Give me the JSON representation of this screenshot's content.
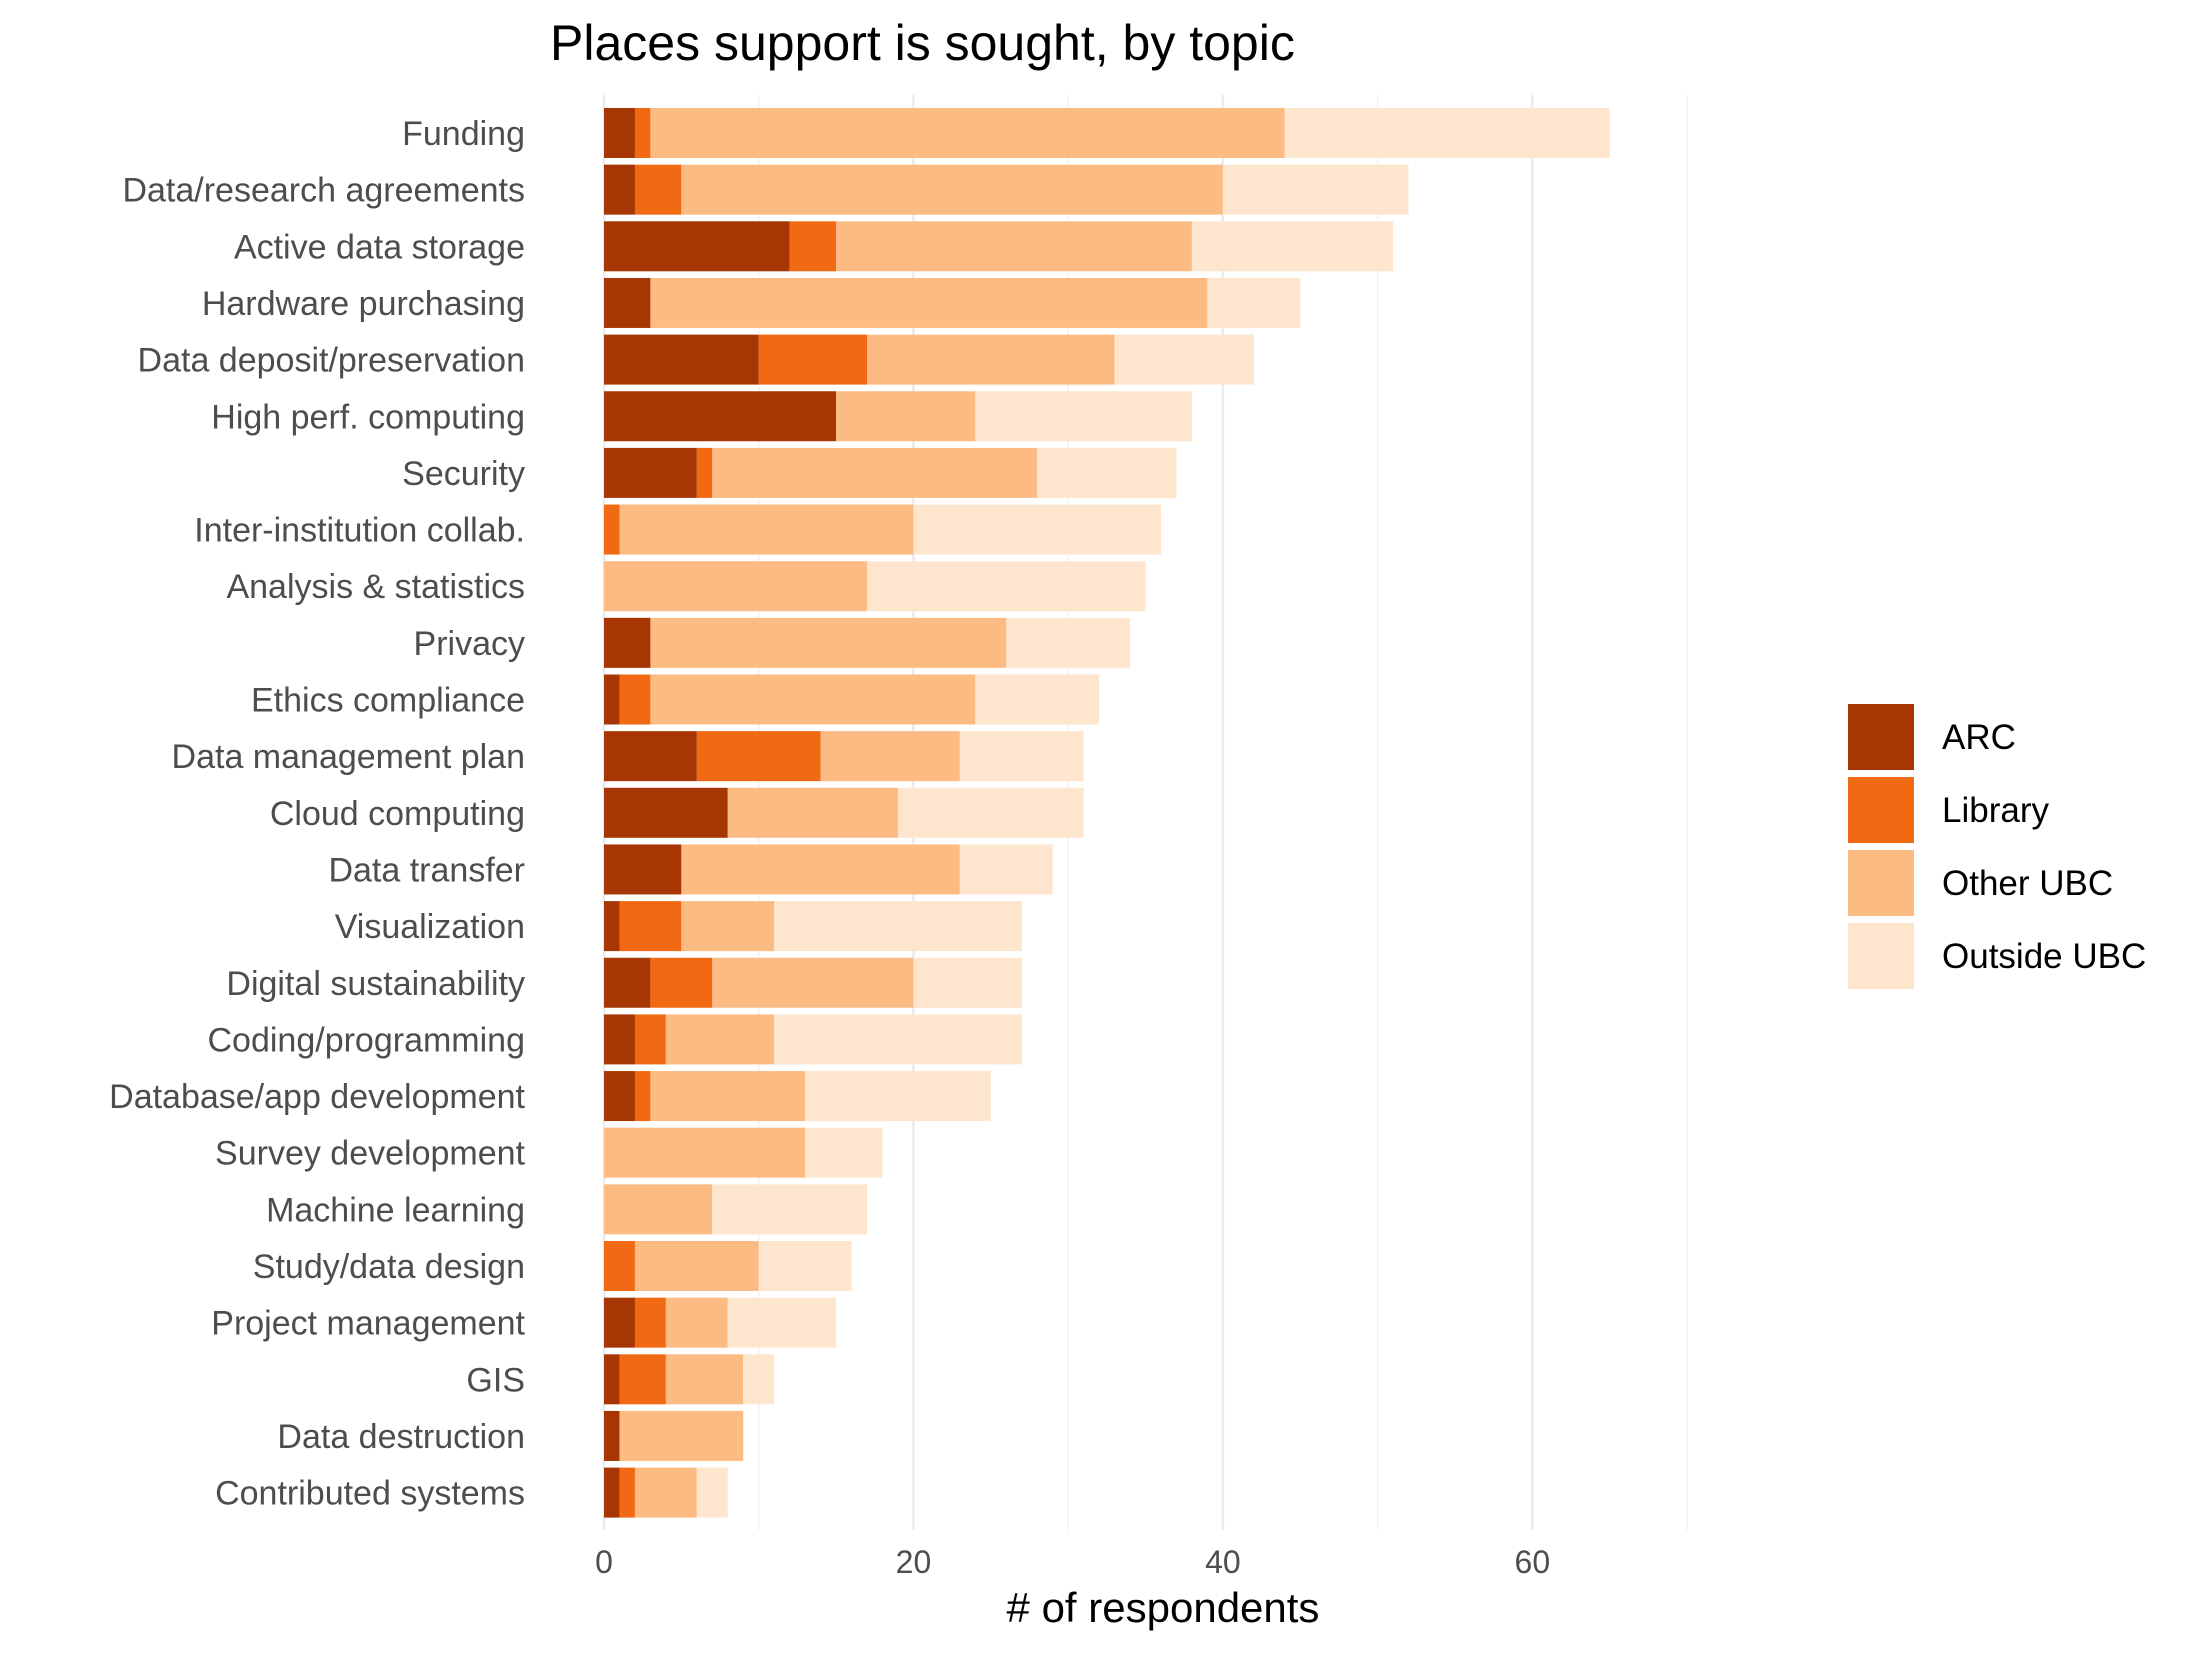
{
  "chart_data": {
    "type": "bar",
    "orientation": "horizontal",
    "stacked": true,
    "title": "Places support is sought, by topic",
    "xlabel": "# of respondents",
    "ylabel": "",
    "xlim": [
      0,
      72
    ],
    "xticks": [
      0,
      20,
      40,
      60
    ],
    "grid": true,
    "legend_position": "right",
    "categories": [
      "Funding",
      "Data/research agreements",
      "Active data storage",
      "Hardware purchasing",
      "Data deposit/preservation",
      "High perf. computing",
      "Security",
      "Inter-institution collab.",
      "Analysis & statistics",
      "Privacy",
      "Ethics compliance",
      "Data management plan",
      "Cloud computing",
      "Data transfer",
      "Visualization",
      "Digital sustainability",
      "Coding/programming",
      "Database/app development",
      "Survey development",
      "Machine learning",
      "Study/data design",
      "Project management",
      "GIS",
      "Data destruction",
      "Contributed systems"
    ],
    "series": [
      {
        "name": "ARC",
        "color": "#a63603",
        "values": [
          2,
          2,
          12,
          3,
          10,
          15,
          6,
          0,
          0,
          3,
          1,
          6,
          8,
          5,
          1,
          3,
          2,
          2,
          0,
          0,
          0,
          2,
          1,
          1,
          1
        ]
      },
      {
        "name": "Library",
        "color": "#f16913",
        "values": [
          1,
          3,
          3,
          0,
          7,
          0,
          1,
          1,
          0,
          0,
          2,
          8,
          0,
          0,
          4,
          4,
          2,
          1,
          0,
          0,
          2,
          2,
          3,
          0,
          1
        ]
      },
      {
        "name": "Other UBC",
        "color": "#fdbb84",
        "values": [
          41,
          35,
          23,
          36,
          16,
          9,
          21,
          19,
          17,
          23,
          21,
          9,
          11,
          18,
          6,
          13,
          7,
          10,
          13,
          7,
          8,
          4,
          5,
          8,
          4
        ]
      },
      {
        "name": "Outside UBC",
        "color": "#fee6ce",
        "values": [
          21,
          12,
          13,
          6,
          9,
          14,
          9,
          16,
          18,
          8,
          8,
          8,
          12,
          6,
          16,
          7,
          16,
          12,
          5,
          10,
          6,
          7,
          2,
          0,
          2
        ]
      }
    ]
  }
}
